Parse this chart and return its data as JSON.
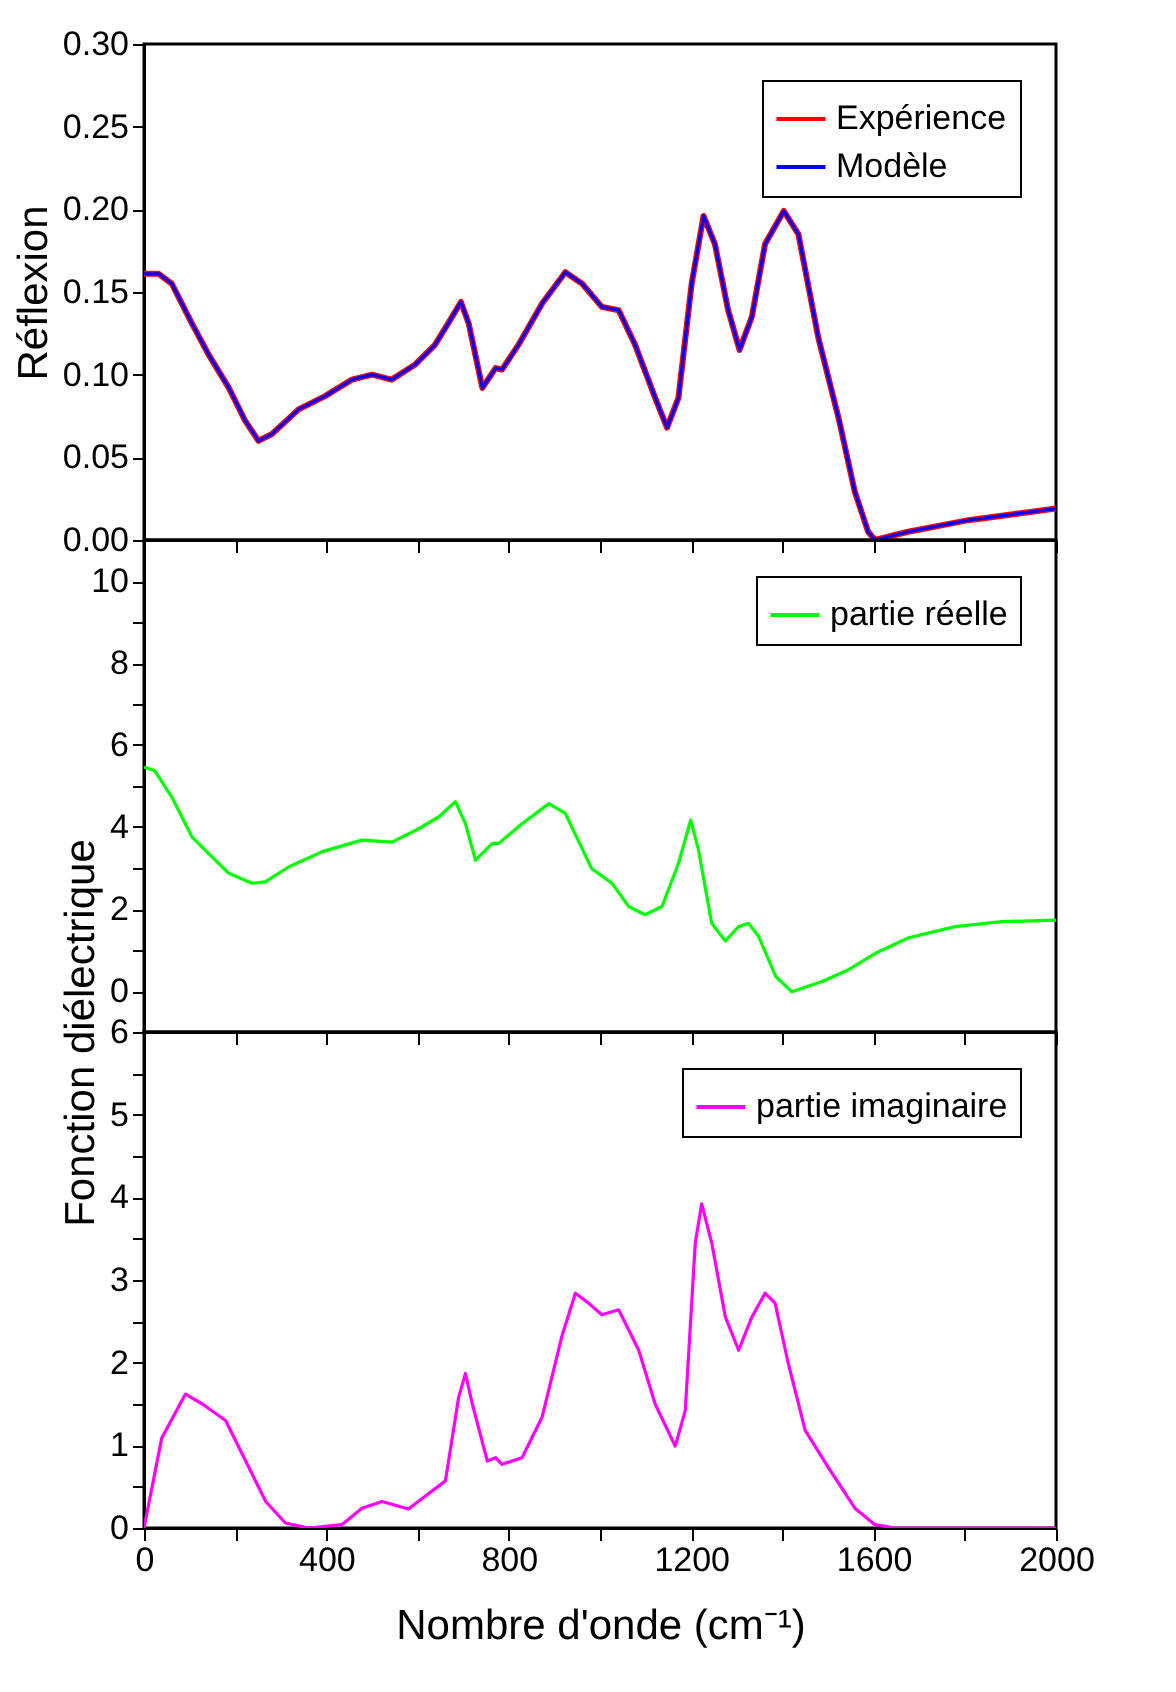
{
  "chart_data": [
    {
      "type": "line",
      "ylabel": "Réflexion",
      "xlim": [
        0,
        2000
      ],
      "ylim": [
        0,
        0.3
      ],
      "xticks": [
        0,
        {
          "value": 200,
          "label": null
        },
        400,
        {
          "value": 600,
          "label": null
        },
        800,
        {
          "value": 1000,
          "label": null
        },
        1200,
        {
          "value": 1400,
          "label": null
        },
        1600,
        {
          "value": 1800,
          "label": null
        },
        2000
      ],
      "yticks": [
        {
          "value": 0,
          "label": "0.00"
        },
        {
          "value": 0.05,
          "label": "0.05"
        },
        {
          "value": 0.1,
          "label": "0.10"
        },
        {
          "value": 0.15,
          "label": "0.15"
        },
        {
          "value": 0.2,
          "label": "0.20"
        },
        {
          "value": 0.25,
          "label": "0.25"
        },
        {
          "value": 0.3,
          "label": "0.30"
        }
      ],
      "tick_labels": "y",
      "legend": "top right",
      "grid": false,
      "marker": "none",
      "line_style": "solid",
      "x": [
        0,
        32,
        61,
        105,
        142,
        186,
        222,
        251,
        280,
        339,
        397,
        456,
        500,
        543,
        594,
        638,
        667,
        695,
        712,
        742,
        771,
        785,
        821,
        873,
        924,
        961,
        1004,
        1041,
        1077,
        1121,
        1147,
        1172,
        1201,
        1227,
        1252,
        1281,
        1306,
        1333,
        1362,
        1403,
        1435,
        1479,
        1523,
        1559,
        1588,
        1603,
        1676,
        1808,
        2000
      ],
      "series": [
        {
          "name": "Expérience",
          "color": "#ff0000",
          "values": [
            0.161,
            0.161,
            0.155,
            0.131,
            0.112,
            0.092,
            0.072,
            0.06,
            0.064,
            0.079,
            0.087,
            0.097,
            0.1,
            0.097,
            0.106,
            0.118,
            0.131,
            0.144,
            0.131,
            0.092,
            0.104,
            0.103,
            0.118,
            0.143,
            0.162,
            0.155,
            0.141,
            0.139,
            0.118,
            0.086,
            0.068,
            0.086,
            0.155,
            0.196,
            0.179,
            0.139,
            0.115,
            0.135,
            0.179,
            0.199,
            0.185,
            0.122,
            0.074,
            0.029,
            0.005,
            0.0,
            0.005,
            0.012,
            0.019
          ]
        },
        {
          "name": "Modèle",
          "color": "#0000ff",
          "values": [
            0.161,
            0.161,
            0.155,
            0.131,
            0.112,
            0.092,
            0.072,
            0.06,
            0.064,
            0.079,
            0.087,
            0.097,
            0.1,
            0.097,
            0.106,
            0.118,
            0.131,
            0.144,
            0.131,
            0.092,
            0.104,
            0.103,
            0.118,
            0.143,
            0.162,
            0.155,
            0.141,
            0.139,
            0.118,
            0.086,
            0.068,
            0.086,
            0.155,
            0.196,
            0.179,
            0.139,
            0.115,
            0.135,
            0.179,
            0.199,
            0.185,
            0.122,
            0.074,
            0.029,
            0.005,
            0.0,
            0.005,
            0.012,
            0.019
          ]
        }
      ]
    },
    {
      "type": "line",
      "xlim": [
        0,
        2000
      ],
      "ylim": [
        -1,
        11
      ],
      "xticks": [
        0,
        {
          "value": 200,
          "label": null
        },
        400,
        {
          "value": 600,
          "label": null
        },
        800,
        {
          "value": 1000,
          "label": null
        },
        1200,
        {
          "value": 1400,
          "label": null
        },
        1600,
        {
          "value": 1800,
          "label": null
        },
        2000
      ],
      "yticks": [
        0,
        {
          "value": 1,
          "label": null
        },
        2,
        {
          "value": 3,
          "label": null
        },
        4,
        {
          "value": 5,
          "label": null
        },
        6,
        {
          "value": 7,
          "label": null
        },
        8,
        {
          "value": 9,
          "label": null
        },
        10
      ],
      "tick_labels": "y",
      "legend": "top right",
      "grid": false,
      "marker": "none",
      "line_style": "solid",
      "x": [
        0,
        23,
        61,
        105,
        142,
        186,
        237,
        266,
        318,
        391,
        478,
        544,
        596,
        647,
        683,
        705,
        727,
        764,
        778,
        829,
        888,
        924,
        982,
        1026,
        1063,
        1099,
        1136,
        1172,
        1199,
        1216,
        1245,
        1275,
        1304,
        1326,
        1348,
        1385,
        1421,
        1487,
        1545,
        1604,
        1677,
        1779,
        1881,
        2000
      ],
      "series": [
        {
          "name": "partie réelle",
          "color": "#00ff00",
          "values": [
            5.46,
            5.38,
            4.73,
            3.76,
            3.35,
            2.87,
            2.63,
            2.66,
            3.03,
            3.4,
            3.68,
            3.63,
            3.92,
            4.25,
            4.62,
            4.08,
            3.19,
            3.6,
            3.6,
            4.08,
            4.57,
            4.33,
            2.98,
            2.63,
            2.06,
            1.86,
            2.06,
            3.11,
            4.17,
            3.44,
            1.65,
            1.22,
            1.57,
            1.65,
            1.33,
            0.36,
            -0.02,
            0.23,
            0.52,
            0.92,
            1.3,
            1.57,
            1.69,
            1.73
          ]
        }
      ]
    },
    {
      "type": "line",
      "xlabel": "Nombre d'onde (cm⁻¹)",
      "ylabel": "Fonction diélectrique",
      "xlim": [
        0,
        2000
      ],
      "ylim": [
        0,
        6
      ],
      "xticks": [
        0,
        {
          "value": 200,
          "label": null
        },
        400,
        {
          "value": 600,
          "label": null
        },
        800,
        {
          "value": 1000,
          "label": null
        },
        1200,
        {
          "value": 1400,
          "label": null
        },
        1600,
        {
          "value": 1800,
          "label": null
        },
        2000
      ],
      "yticks": [
        0,
        {
          "value": 0.5,
          "label": null
        },
        1,
        {
          "value": 1.5,
          "label": null
        },
        2,
        {
          "value": 2.5,
          "label": null
        },
        3,
        {
          "value": 3.5,
          "label": null
        },
        4,
        {
          "value": 4.5,
          "label": null
        },
        5,
        {
          "value": 5.5,
          "label": null
        },
        6
      ],
      "legend": "top right",
      "grid": false,
      "marker": "none",
      "line_style": "solid",
      "x": [
        0,
        39,
        91,
        128,
        179,
        223,
        267,
        310,
        361,
        434,
        478,
        522,
        580,
        661,
        690,
        705,
        720,
        753,
        771,
        785,
        829,
        873,
        916,
        946,
        975,
        1004,
        1041,
        1085,
        1121,
        1165,
        1187,
        1209,
        1223,
        1245,
        1275,
        1304,
        1333,
        1362,
        1384,
        1413,
        1450,
        1501,
        1559,
        1603,
        1647,
        2000
      ],
      "series": [
        {
          "name": "partie imaginaire",
          "color": "#ff00ff",
          "values": [
            0,
            1.09,
            1.62,
            1.5,
            1.3,
            0.81,
            0.32,
            0.06,
            0,
            0.04,
            0.24,
            0.32,
            0.23,
            0.57,
            1.58,
            1.87,
            1.5,
            0.81,
            0.85,
            0.77,
            0.85,
            1.34,
            2.31,
            2.84,
            2.72,
            2.58,
            2.64,
            2.15,
            1.5,
            0.99,
            1.42,
            3.45,
            3.92,
            3.45,
            2.55,
            2.15,
            2.55,
            2.84,
            2.72,
            1.99,
            1.18,
            0.73,
            0.24,
            0.04,
            0,
            0
          ]
        }
      ]
    }
  ]
}
